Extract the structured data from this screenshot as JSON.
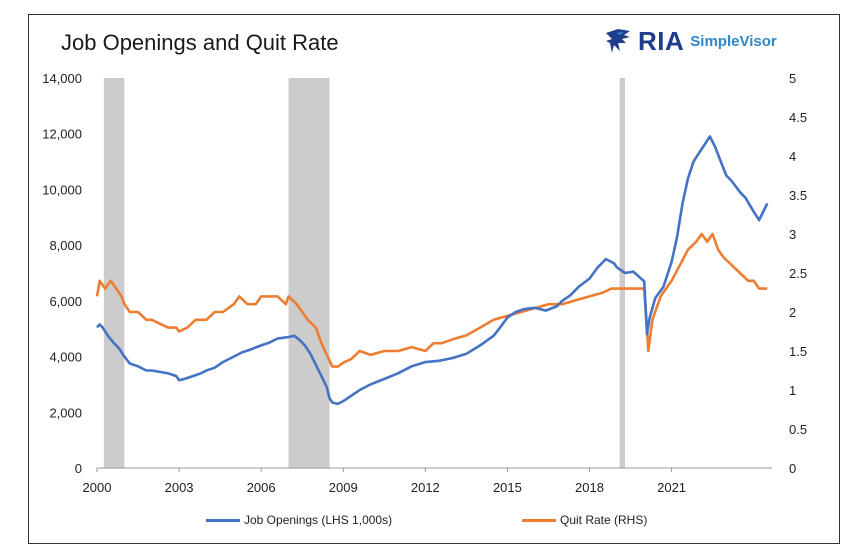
{
  "chart_data": {
    "type": "line",
    "title": "Job Openings and Quit Rate",
    "logo": {
      "brand": "RIA",
      "product": "SimpleVisor",
      "icon": "eagle-icon"
    },
    "x_ticks": [
      "2000",
      "2003",
      "2006",
      "2009",
      "2012",
      "2015",
      "2018",
      "2021"
    ],
    "y_left": {
      "ylim": [
        0,
        14000
      ],
      "ticks": [
        "0",
        "2,000",
        "4,000",
        "6,000",
        "8,000",
        "10,000",
        "12,000",
        "14,000"
      ]
    },
    "y_right": {
      "ylim": [
        0,
        5
      ],
      "ticks": [
        "0",
        "0.5",
        "1",
        "1.5",
        "2",
        "2.5",
        "3",
        "3.5",
        "4",
        "4.5",
        "5"
      ]
    },
    "recessions": [
      [
        2000.25,
        2001.0
      ],
      [
        2007.0,
        2008.5
      ],
      [
        2019.1,
        2019.3
      ]
    ],
    "series": [
      {
        "name": "Job Openings (LHS 1,000s)",
        "axis": "left",
        "color": "#4472c4",
        "points": [
          [
            2000.0,
            5050
          ],
          [
            2000.1,
            5150
          ],
          [
            2000.2,
            5050
          ],
          [
            2000.4,
            4750
          ],
          [
            2000.6,
            4500
          ],
          [
            2000.8,
            4300
          ],
          [
            2001.0,
            4000
          ],
          [
            2001.2,
            3750
          ],
          [
            2001.5,
            3650
          ],
          [
            2001.8,
            3500
          ],
          [
            2002.0,
            3500
          ],
          [
            2002.3,
            3450
          ],
          [
            2002.6,
            3400
          ],
          [
            2002.9,
            3300
          ],
          [
            2003.0,
            3150
          ],
          [
            2003.2,
            3200
          ],
          [
            2003.5,
            3300
          ],
          [
            2003.8,
            3400
          ],
          [
            2004.0,
            3500
          ],
          [
            2004.3,
            3600
          ],
          [
            2004.6,
            3800
          ],
          [
            2005.0,
            4000
          ],
          [
            2005.3,
            4150
          ],
          [
            2005.6,
            4250
          ],
          [
            2006.0,
            4400
          ],
          [
            2006.3,
            4500
          ],
          [
            2006.6,
            4650
          ],
          [
            2007.0,
            4700
          ],
          [
            2007.2,
            4750
          ],
          [
            2007.4,
            4600
          ],
          [
            2007.6,
            4400
          ],
          [
            2007.8,
            4100
          ],
          [
            2008.0,
            3700
          ],
          [
            2008.2,
            3300
          ],
          [
            2008.4,
            2900
          ],
          [
            2008.5,
            2500
          ],
          [
            2008.6,
            2350
          ],
          [
            2008.8,
            2300
          ],
          [
            2009.0,
            2400
          ],
          [
            2009.3,
            2600
          ],
          [
            2009.6,
            2800
          ],
          [
            2010.0,
            3000
          ],
          [
            2010.5,
            3200
          ],
          [
            2011.0,
            3400
          ],
          [
            2011.5,
            3650
          ],
          [
            2012.0,
            3800
          ],
          [
            2012.5,
            3850
          ],
          [
            2013.0,
            3950
          ],
          [
            2013.5,
            4100
          ],
          [
            2014.0,
            4400
          ],
          [
            2014.5,
            4750
          ],
          [
            2014.7,
            5000
          ],
          [
            2015.0,
            5400
          ],
          [
            2015.3,
            5600
          ],
          [
            2015.6,
            5700
          ],
          [
            2016.0,
            5750
          ],
          [
            2016.4,
            5650
          ],
          [
            2016.8,
            5800
          ],
          [
            2017.0,
            6000
          ],
          [
            2017.3,
            6200
          ],
          [
            2017.6,
            6500
          ],
          [
            2018.0,
            6800
          ],
          [
            2018.3,
            7200
          ],
          [
            2018.6,
            7500
          ],
          [
            2018.9,
            7350
          ],
          [
            2019.0,
            7200
          ],
          [
            2019.3,
            7000
          ],
          [
            2019.6,
            7050
          ],
          [
            2020.0,
            6700
          ],
          [
            2020.1,
            4800
          ],
          [
            2020.2,
            5400
          ],
          [
            2020.4,
            6100
          ],
          [
            2020.7,
            6500
          ],
          [
            2021.0,
            7400
          ],
          [
            2021.2,
            8300
          ],
          [
            2021.4,
            9500
          ],
          [
            2021.6,
            10400
          ],
          [
            2021.8,
            11000
          ],
          [
            2022.0,
            11300
          ],
          [
            2022.2,
            11600
          ],
          [
            2022.4,
            11900
          ],
          [
            2022.6,
            11500
          ],
          [
            2022.8,
            11000
          ],
          [
            2023.0,
            10500
          ],
          [
            2023.2,
            10300
          ],
          [
            2023.5,
            9900
          ],
          [
            2023.7,
            9700
          ],
          [
            2024.0,
            9200
          ],
          [
            2024.2,
            8900
          ],
          [
            2024.3,
            9100
          ],
          [
            2024.5,
            9500
          ]
        ]
      },
      {
        "name": "Quit Rate (RHS)",
        "axis": "right",
        "color": "#ed7d31",
        "points": [
          [
            2000.0,
            2.2
          ],
          [
            2000.1,
            2.4
          ],
          [
            2000.3,
            2.3
          ],
          [
            2000.5,
            2.4
          ],
          [
            2000.7,
            2.3
          ],
          [
            2000.9,
            2.2
          ],
          [
            2001.0,
            2.1
          ],
          [
            2001.2,
            2.0
          ],
          [
            2001.5,
            2.0
          ],
          [
            2001.8,
            1.9
          ],
          [
            2002.0,
            1.9
          ],
          [
            2002.3,
            1.85
          ],
          [
            2002.6,
            1.8
          ],
          [
            2002.9,
            1.8
          ],
          [
            2003.0,
            1.75
          ],
          [
            2003.3,
            1.8
          ],
          [
            2003.6,
            1.9
          ],
          [
            2004.0,
            1.9
          ],
          [
            2004.3,
            2.0
          ],
          [
            2004.6,
            2.0
          ],
          [
            2005.0,
            2.1
          ],
          [
            2005.2,
            2.2
          ],
          [
            2005.5,
            2.1
          ],
          [
            2005.8,
            2.1
          ],
          [
            2006.0,
            2.2
          ],
          [
            2006.3,
            2.2
          ],
          [
            2006.6,
            2.2
          ],
          [
            2006.9,
            2.1
          ],
          [
            2007.0,
            2.2
          ],
          [
            2007.3,
            2.1
          ],
          [
            2007.5,
            2.0
          ],
          [
            2007.7,
            1.9
          ],
          [
            2008.0,
            1.8
          ],
          [
            2008.2,
            1.6
          ],
          [
            2008.4,
            1.45
          ],
          [
            2008.6,
            1.3
          ],
          [
            2008.8,
            1.3
          ],
          [
            2009.0,
            1.35
          ],
          [
            2009.3,
            1.4
          ],
          [
            2009.6,
            1.5
          ],
          [
            2010.0,
            1.45
          ],
          [
            2010.5,
            1.5
          ],
          [
            2011.0,
            1.5
          ],
          [
            2011.5,
            1.55
          ],
          [
            2012.0,
            1.5
          ],
          [
            2012.3,
            1.6
          ],
          [
            2012.6,
            1.6
          ],
          [
            2013.0,
            1.65
          ],
          [
            2013.5,
            1.7
          ],
          [
            2014.0,
            1.8
          ],
          [
            2014.5,
            1.9
          ],
          [
            2015.0,
            1.95
          ],
          [
            2015.5,
            2.0
          ],
          [
            2016.0,
            2.05
          ],
          [
            2016.5,
            2.1
          ],
          [
            2017.0,
            2.1
          ],
          [
            2017.5,
            2.15
          ],
          [
            2018.0,
            2.2
          ],
          [
            2018.5,
            2.25
          ],
          [
            2018.8,
            2.3
          ],
          [
            2019.0,
            2.3
          ],
          [
            2019.3,
            2.3
          ],
          [
            2019.6,
            2.3
          ],
          [
            2019.9,
            2.3
          ],
          [
            2020.0,
            2.3
          ],
          [
            2020.1,
            1.8
          ],
          [
            2020.15,
            1.5
          ],
          [
            2020.3,
            1.9
          ],
          [
            2020.6,
            2.2
          ],
          [
            2021.0,
            2.4
          ],
          [
            2021.3,
            2.6
          ],
          [
            2021.6,
            2.8
          ],
          [
            2021.9,
            2.9
          ],
          [
            2022.1,
            3.0
          ],
          [
            2022.3,
            2.9
          ],
          [
            2022.5,
            3.0
          ],
          [
            2022.7,
            2.8
          ],
          [
            2022.9,
            2.7
          ],
          [
            2023.2,
            2.6
          ],
          [
            2023.5,
            2.5
          ],
          [
            2023.8,
            2.4
          ],
          [
            2024.0,
            2.4
          ],
          [
            2024.2,
            2.3
          ],
          [
            2024.5,
            2.3
          ]
        ]
      }
    ],
    "grid": false,
    "legend_position": "bottom"
  },
  "colors": {
    "recession_band": "#cccccc",
    "brand_dark": "#1f3d8a",
    "brand_light": "#2f86c9"
  }
}
